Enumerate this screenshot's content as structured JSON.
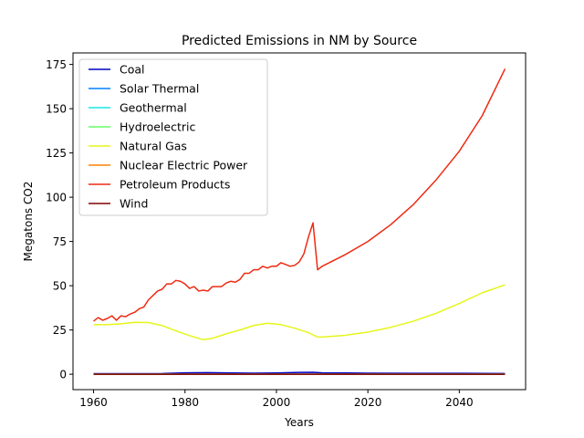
{
  "chart_data": {
    "type": "line",
    "title": "Predicted Emissions in NM by Source",
    "xlabel": "Years",
    "ylabel": "Megatons CO2",
    "xlim": [
      1955.5,
      2054.5
    ],
    "ylim": [
      -8.7,
      181.5
    ],
    "xticks": [
      1960,
      1980,
      2000,
      2020,
      2040
    ],
    "yticks": [
      0,
      25,
      50,
      75,
      100,
      125,
      150,
      175
    ],
    "legend_position": "upper-left",
    "series": [
      {
        "name": "Coal",
        "color": "#0000c8",
        "x": [
          1960,
          1970,
          1975,
          1980,
          1985,
          1990,
          1995,
          2000,
          2005,
          2008,
          2010,
          2020,
          2030,
          2040,
          2050
        ],
        "y": [
          0.3,
          0.3,
          0.4,
          0.8,
          0.9,
          0.7,
          0.6,
          0.7,
          1.0,
          1.1,
          0.8,
          0.6,
          0.5,
          0.5,
          0.4
        ]
      },
      {
        "name": "Solar Thermal",
        "color": "#0080ff",
        "x": [
          1960,
          2000,
          2050
        ],
        "y": [
          0.0,
          0.0,
          0.0
        ]
      },
      {
        "name": "Geothermal",
        "color": "#1ae6e6",
        "x": [
          1960,
          2000,
          2050
        ],
        "y": [
          0.0,
          0.0,
          0.0
        ]
      },
      {
        "name": "Hydroelectric",
        "color": "#66ff66",
        "x": [
          1960,
          2000,
          2050
        ],
        "y": [
          0.0,
          0.0,
          0.0
        ]
      },
      {
        "name": "Natural Gas",
        "color": "#e6f51a",
        "x": [
          1960,
          1963,
          1966,
          1969,
          1972,
          1975,
          1978,
          1981,
          1984,
          1986,
          1989,
          1992,
          1995,
          1998,
          2001,
          2004,
          2007,
          2009,
          2010,
          2015,
          2020,
          2025,
          2030,
          2035,
          2040,
          2045,
          2050
        ],
        "y": [
          28.0,
          28.0,
          28.5,
          29.3,
          29.2,
          27.5,
          24.5,
          21.8,
          19.5,
          20.3,
          22.8,
          25.0,
          27.5,
          28.8,
          28.0,
          26.0,
          23.5,
          21.0,
          21.0,
          22.0,
          23.8,
          26.5,
          30.0,
          34.5,
          40.0,
          46.0,
          50.5
        ]
      },
      {
        "name": "Nuclear Electric Power",
        "color": "#ff8000",
        "x": [
          1960,
          2000,
          2050
        ],
        "y": [
          0.0,
          0.0,
          0.0
        ]
      },
      {
        "name": "Petroleum Products",
        "color": "#ee2a12",
        "x": [
          1960,
          1961,
          1962,
          1963,
          1964,
          1965,
          1966,
          1967,
          1968,
          1969,
          1970,
          1971,
          1972,
          1973,
          1974,
          1975,
          1976,
          1977,
          1978,
          1979,
          1980,
          1981,
          1982,
          1983,
          1984,
          1985,
          1986,
          1987,
          1988,
          1989,
          1990,
          1991,
          1992,
          1993,
          1994,
          1995,
          1996,
          1997,
          1998,
          1999,
          2000,
          2001,
          2002,
          2003,
          2004,
          2005,
          2006,
          2007,
          2008,
          2009,
          2010,
          2015,
          2020,
          2025,
          2030,
          2035,
          2040,
          2045,
          2050
        ],
        "y": [
          30.0,
          32.0,
          30.5,
          31.5,
          33.0,
          30.5,
          33.0,
          32.5,
          34.0,
          35.0,
          37.0,
          38.0,
          42.0,
          44.5,
          47.0,
          48.0,
          51.0,
          51.0,
          53.0,
          52.5,
          51.0,
          48.5,
          49.5,
          47.0,
          47.5,
          47.0,
          49.5,
          49.5,
          49.5,
          51.5,
          52.5,
          52.0,
          53.5,
          57.0,
          57.0,
          59.0,
          59.0,
          61.0,
          60.0,
          61.0,
          61.0,
          63.0,
          62.0,
          61.0,
          61.5,
          63.5,
          68.0,
          77.5,
          85.5,
          59.0,
          61.0,
          67.5,
          75.0,
          84.5,
          96.0,
          110.0,
          126.0,
          146.0,
          172.5
        ]
      },
      {
        "name": "Wind",
        "color": "#800000",
        "x": [
          1960,
          2000,
          2050
        ],
        "y": [
          0.0,
          0.0,
          0.0
        ]
      }
    ]
  }
}
